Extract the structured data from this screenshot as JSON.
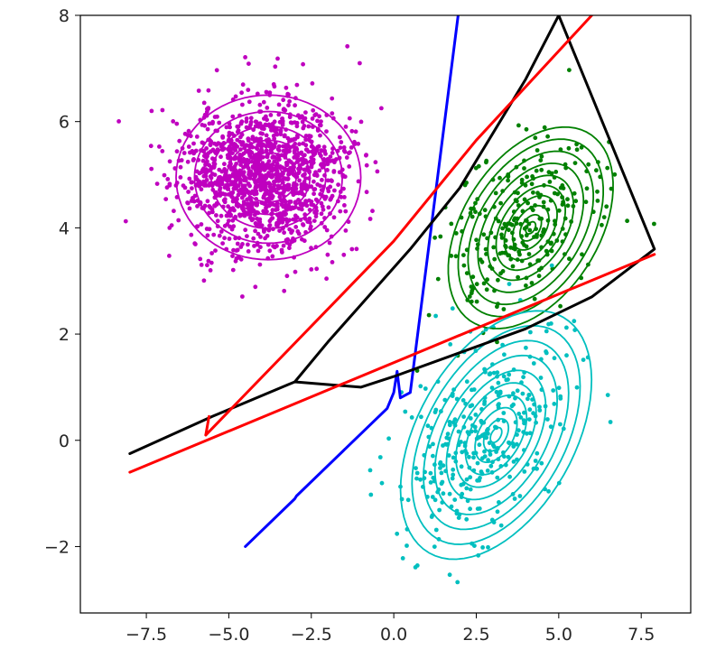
{
  "chart_data": {
    "type": "scatter",
    "title": "",
    "xlabel": "",
    "ylabel": "",
    "xlim": [
      -9.5,
      9.0
    ],
    "ylim": [
      -3.25,
      8.0
    ],
    "xticks": [
      -7.5,
      -5.0,
      -2.5,
      0.0,
      2.5,
      5.0,
      7.5
    ],
    "xtick_labels": [
      "−7.5",
      "−5.0",
      "−2.5",
      "0.0",
      "2.5",
      "5.0",
      "7.5"
    ],
    "yticks": [
      -2,
      0,
      2,
      4,
      6,
      8
    ],
    "ytick_labels": [
      "−2",
      "0",
      "2",
      "4",
      "6",
      "8"
    ],
    "grid": false,
    "clusters": [
      {
        "color": "#bf00bf",
        "center": [
          -4.0,
          5.0
        ],
        "std": [
          1.25,
          0.7
        ],
        "corr": 0.0,
        "count": 1400,
        "seed": 11
      },
      {
        "color": "#008000",
        "center": [
          3.8,
          4.0
        ],
        "std": [
          1.2,
          0.85
        ],
        "corr": 0.45,
        "count": 260,
        "seed": 23
      },
      {
        "color": "#00bfbf",
        "center": [
          2.8,
          0.1
        ],
        "std": [
          1.3,
          1.0
        ],
        "corr": 0.45,
        "count": 330,
        "seed": 37
      }
    ],
    "contours": [
      {
        "color": "#008000",
        "center": [
          4.15,
          4.0
        ],
        "rx": 2.7,
        "ry": 1.6,
        "angle_deg": 28,
        "levels": [
          1.0,
          0.88,
          0.76,
          0.64,
          0.52,
          0.42,
          0.32,
          0.22,
          0.13,
          0.06
        ]
      },
      {
        "color": "#00bfbf",
        "center": [
          3.1,
          0.1
        ],
        "rx": 3.2,
        "ry": 1.9,
        "angle_deg": 32,
        "levels": [
          1.0,
          0.88,
          0.76,
          0.64,
          0.52,
          0.42,
          0.32,
          0.22,
          0.13,
          0.06
        ]
      },
      {
        "color": "#bf00bf",
        "center": [
          -3.8,
          4.95
        ],
        "rx": 2.8,
        "ry": 1.55,
        "angle_deg": 0,
        "levels": [
          1.0,
          0.8,
          0.62,
          0.45,
          0.3,
          0.16
        ]
      }
    ],
    "series": [
      {
        "type": "line",
        "color": "#0000ff",
        "x": [
          -4.5,
          -3.0,
          -2.95,
          -0.2,
          0.0,
          0.1,
          0.2,
          0.5,
          1.95
        ],
        "y": [
          -2.0,
          -1.1,
          -1.05,
          0.6,
          0.9,
          1.3,
          0.8,
          0.9,
          8.0
        ]
      },
      {
        "type": "line",
        "color": "#000000",
        "x": [
          -8.0,
          -5.5,
          -3.2,
          -3.0,
          -2.0,
          -1.0,
          0.0,
          2.0,
          4.0,
          6.0,
          7.9,
          5.0,
          4.0,
          2.0,
          0.5,
          -1.0,
          -2.0,
          -3.0
        ],
        "y": [
          -0.25,
          0.45,
          1.05,
          1.1,
          1.05,
          1.0,
          1.2,
          1.65,
          2.1,
          2.7,
          3.6,
          8.0,
          6.8,
          4.75,
          3.6,
          2.55,
          1.85,
          1.1
        ]
      },
      {
        "type": "line",
        "color": "#ff0000",
        "x": [
          -8.0,
          7.9
        ],
        "y": [
          -0.6,
          3.5
        ]
      },
      {
        "type": "line",
        "color": "#ff0000",
        "x": [
          -5.7,
          0.0,
          2.5,
          6.0
        ],
        "y": [
          0.1,
          3.75,
          5.65,
          8.0
        ]
      },
      {
        "type": "line",
        "color": "#ff0000",
        "x": [
          -5.7,
          -5.6
        ],
        "y": [
          0.1,
          0.45
        ]
      }
    ]
  }
}
